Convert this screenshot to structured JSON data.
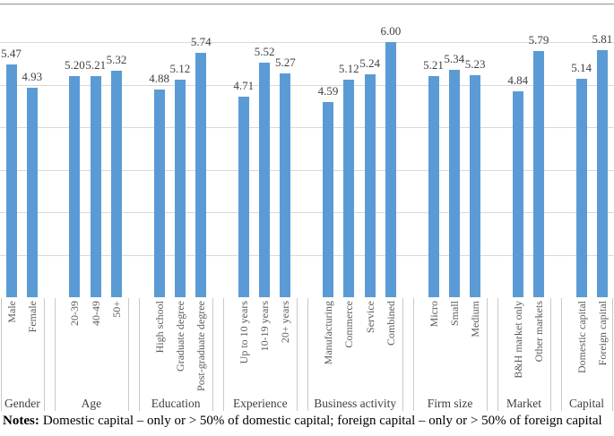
{
  "chart_data": {
    "type": "bar",
    "title": "",
    "xlabel": "",
    "ylabel": "",
    "ylim": [
      0,
      7
    ],
    "grid": "horizontal",
    "legend": "none",
    "value_labels": "above bars, two decimals",
    "bar_color": "#5B9BD5",
    "gridline_color": "#d9d9d9",
    "separator_color": "#c9c9c9",
    "top_border_color": "#8f8f8f",
    "groups": [
      {
        "label": "Gender",
        "bars": [
          {
            "label": "Male",
            "value": 5.47
          },
          {
            "label": "Female",
            "value": 4.93
          }
        ]
      },
      {
        "label": "Age",
        "bars": [
          {
            "label": "20-39",
            "value": 5.2
          },
          {
            "label": "40-49",
            "value": 5.21
          },
          {
            "label": "50+",
            "value": 5.32
          }
        ]
      },
      {
        "label": "Education",
        "bars": [
          {
            "label": "High school",
            "value": 4.88
          },
          {
            "label": "Graduate degree",
            "value": 5.12
          },
          {
            "label": "Post-graduate degree",
            "value": 5.74
          }
        ]
      },
      {
        "label": "Experience",
        "bars": [
          {
            "label": "Up to 10 years",
            "value": 4.71
          },
          {
            "label": "10-19 years",
            "value": 5.52
          },
          {
            "label": "20+ years",
            "value": 5.27
          }
        ]
      },
      {
        "label": "Business activity",
        "bars": [
          {
            "label": "Manufacturing",
            "value": 4.59
          },
          {
            "label": "Commerce",
            "value": 5.12
          },
          {
            "label": "Service",
            "value": 5.24
          },
          {
            "label": "Combined",
            "value": 6.0
          }
        ]
      },
      {
        "label": "Firm size",
        "bars": [
          {
            "label": "Micro",
            "value": 5.21
          },
          {
            "label": "Small",
            "value": 5.34
          },
          {
            "label": "Medium",
            "value": 5.23
          }
        ]
      },
      {
        "label": "Market",
        "bars": [
          {
            "label": "B&H market only",
            "value": 4.84
          },
          {
            "label": "Other markets",
            "value": 5.79
          }
        ]
      },
      {
        "label": "Capital",
        "bars": [
          {
            "label": "Domestic capital",
            "value": 5.14
          },
          {
            "label": "Foreign capital",
            "value": 5.81
          }
        ]
      }
    ]
  },
  "notes": {
    "label": "Notes:",
    "text": "Domestic capital – only or > 50% of domestic capital; foreign capital – only or > 50% of foreign capital"
  }
}
